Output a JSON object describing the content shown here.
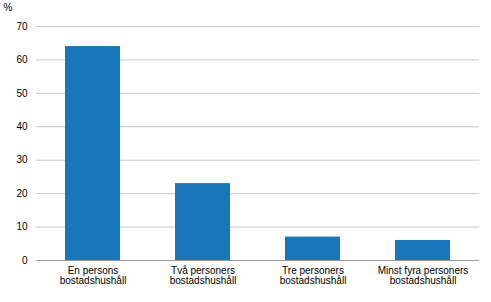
{
  "chart_data": {
    "type": "bar",
    "categories": [
      "En persons\nbostadshushåll",
      "Två personers\nbostadshushåll",
      "Tre personers\nbostadshushåll",
      "Minst fyra personers\nbostadshushåll"
    ],
    "values": [
      64.0,
      23.0,
      7.0,
      6.0
    ],
    "color": "#1777b8",
    "ylabel": "%",
    "ylim": [
      0,
      70
    ],
    "yticks": [
      0,
      10,
      20,
      30,
      40,
      50,
      60,
      70
    ],
    "grid": true
  }
}
